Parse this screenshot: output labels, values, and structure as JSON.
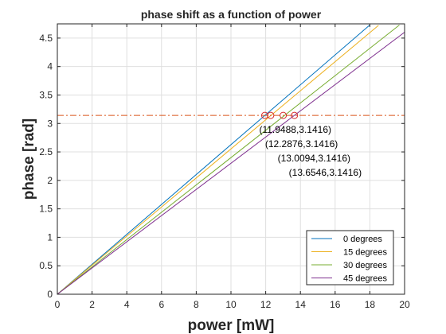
{
  "chart_data": {
    "type": "line",
    "title": "phase shift as a function of power",
    "xlabel": "power [mW]",
    "ylabel": "phase [rad]",
    "xlim": [
      0,
      20
    ],
    "ylim": [
      0,
      4.75
    ],
    "xticks": [
      0,
      2,
      4,
      6,
      8,
      10,
      12,
      14,
      16,
      18,
      20
    ],
    "yticks": [
      0,
      0.5,
      1,
      1.5,
      2,
      2.5,
      3,
      3.5,
      4,
      4.5
    ],
    "xtick_labels": [
      "0",
      "2",
      "4",
      "6",
      "8",
      "10",
      "12",
      "14",
      "16",
      "18",
      "20"
    ],
    "ytick_labels": [
      "0",
      "0.5",
      "1",
      "1.5",
      "2",
      "2.5",
      "3",
      "3.5",
      "4",
      "4.5"
    ],
    "grid": true,
    "legend_position": "bottom-right",
    "series": [
      {
        "name": "0 degrees",
        "color": "#0072bd",
        "x": [
          0,
          18
        ],
        "y": [
          0,
          4.7304
        ]
      },
      {
        "name": "15 degrees",
        "color": "#edb120",
        "x": [
          0,
          18.5
        ],
        "y": [
          0,
          4.7236
        ]
      },
      {
        "name": "30 degrees",
        "color": "#77ac30",
        "x": [
          0,
          19.7
        ],
        "y": [
          0,
          4.7286
        ]
      },
      {
        "name": "45 degrees",
        "color": "#7e2f8e",
        "x": [
          0,
          20
        ],
        "y": [
          0,
          4.6034
        ]
      }
    ],
    "reference_line": {
      "y": 3.1416,
      "color": "#d95319",
      "style": "dash-dot"
    },
    "markers": [
      {
        "x": 11.9488,
        "y": 3.1416,
        "label": "(11.9488,3.1416)"
      },
      {
        "x": 12.2876,
        "y": 3.1416,
        "label": "(12.2876,3.1416)"
      },
      {
        "x": 13.0094,
        "y": 3.1416,
        "label": "(13.0094,3.1416)"
      },
      {
        "x": 13.6546,
        "y": 3.1416,
        "label": "(13.6546,3.1416)"
      }
    ]
  }
}
